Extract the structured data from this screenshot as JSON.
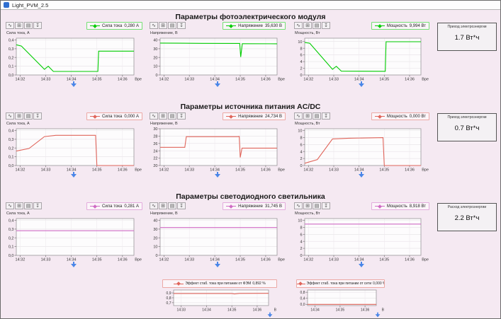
{
  "window": {
    "title": "Light_PVM_2.5"
  },
  "colors": {
    "background": "#f5e9f2",
    "arrow": "#4a86e8",
    "pv_series": "#00cc00",
    "acdc_series": "#e0655b",
    "led_series": "#cf6bc4"
  },
  "toolbar_icons": [
    {
      "name": "graph-cursor-icon",
      "glyph": "∿"
    },
    {
      "name": "graph-zoom-icon",
      "glyph": "⊞"
    },
    {
      "name": "graph-report-icon",
      "glyph": "▤"
    },
    {
      "name": "graph-export-icon",
      "glyph": "↧"
    }
  ],
  "sections": [
    {
      "title": "Параметры фотоэлектрического модуля",
      "info_label": "Приход электроэнергии",
      "info_value": "1.7 Вт*ч"
    },
    {
      "title": "Параметры источника питания AC/DC",
      "info_label": "Приход электроэнергии",
      "info_value": "0.7 Вт*ч"
    },
    {
      "title": "Параметры светодиодного светильника",
      "info_label": "Расход электроэнергии",
      "info_value": "2.2 Вт*ч"
    }
  ],
  "charts": [
    {
      "slot": "r1c1",
      "tpl": "main",
      "color": "#00cc00",
      "ylabel": "Сила тока, А",
      "xlabel": "Вре",
      "legend_label": "Сила тока",
      "legend_value": "0,280 А",
      "ylim": [
        0,
        0.42
      ],
      "yticks": [
        {
          "v": 0,
          "label": "0,0"
        },
        {
          "v": 0.1,
          "label": "0,1"
        },
        {
          "v": 0.2,
          "label": "0,2"
        },
        {
          "v": 0.3,
          "label": "0,3"
        },
        {
          "v": 0.4,
          "label": "0,4"
        }
      ],
      "xlim": [
        -0.15,
        4.45
      ],
      "xticks": [
        {
          "v": 0,
          "label": "14:32"
        },
        {
          "v": 1,
          "label": "14:33"
        },
        {
          "v": 2,
          "label": "14:34"
        },
        {
          "v": 3,
          "label": "14:35"
        },
        {
          "v": 4,
          "label": "14:36"
        }
      ],
      "points": [
        [
          -0.15,
          0.345
        ],
        [
          0.05,
          0.33
        ],
        [
          0.95,
          0.065
        ],
        [
          1.1,
          0.1
        ],
        [
          1.3,
          0.04
        ],
        [
          3.04,
          0.04
        ],
        [
          3.07,
          0.272
        ],
        [
          4.45,
          0.272
        ]
      ]
    },
    {
      "slot": "r1c2",
      "tpl": "main",
      "color": "#00cc00",
      "ylabel": "Напряжение, В",
      "xlabel": "Вре",
      "legend_label": "Напряжение",
      "legend_value": "35,630 В",
      "ylim": [
        0,
        42
      ],
      "yticks": [
        {
          "v": 0,
          "label": "0"
        },
        {
          "v": 10,
          "label": "10"
        },
        {
          "v": 20,
          "label": "20"
        },
        {
          "v": 30,
          "label": "30"
        },
        {
          "v": 40,
          "label": "40"
        }
      ],
      "xlim": [
        -0.15,
        4.45
      ],
      "xticks": [
        {
          "v": 0,
          "label": "14:32"
        },
        {
          "v": 1,
          "label": "14:33"
        },
        {
          "v": 2,
          "label": "14:34"
        },
        {
          "v": 3,
          "label": "14:35"
        },
        {
          "v": 4,
          "label": "14:36"
        }
      ],
      "points": [
        [
          -0.15,
          36.4
        ],
        [
          1.5,
          36.1
        ],
        [
          2.98,
          36.0
        ],
        [
          3.02,
          20.5
        ],
        [
          3.08,
          35.7
        ],
        [
          4.45,
          35.6
        ]
      ]
    },
    {
      "slot": "r1c3",
      "tpl": "main",
      "color": "#00cc00",
      "ylabel": "Мощность, Вт",
      "xlabel": "Вре",
      "legend_label": "Мощность",
      "legend_value": "9,994 Вт",
      "ylim": [
        0,
        11
      ],
      "yticks": [
        {
          "v": 0,
          "label": "0"
        },
        {
          "v": 2,
          "label": "2"
        },
        {
          "v": 4,
          "label": "4"
        },
        {
          "v": 6,
          "label": "6"
        },
        {
          "v": 8,
          "label": "8"
        },
        {
          "v": 10,
          "label": "10"
        }
      ],
      "xlim": [
        -0.15,
        4.45
      ],
      "xticks": [
        {
          "v": 0,
          "label": "14:32"
        },
        {
          "v": 1,
          "label": "14:33"
        },
        {
          "v": 2,
          "label": "14:34"
        },
        {
          "v": 3,
          "label": "14:35"
        },
        {
          "v": 4,
          "label": "14:36"
        }
      ],
      "points": [
        [
          -0.15,
          9.7
        ],
        [
          0.05,
          9.5
        ],
        [
          0.95,
          1.7
        ],
        [
          1.1,
          2.6
        ],
        [
          1.3,
          1.15
        ],
        [
          3.04,
          1.1
        ],
        [
          3.07,
          9.95
        ],
        [
          4.45,
          9.95
        ]
      ]
    },
    {
      "slot": "r2c1",
      "tpl": "main",
      "color": "#e0655b",
      "ylabel": "Сила тока, А",
      "xlabel": "Вре",
      "legend_label": "Сила тока",
      "legend_value": "0,000 А",
      "ylim": [
        0,
        0.42
      ],
      "yticks": [
        {
          "v": 0,
          "label": "0,0"
        },
        {
          "v": 0.1,
          "label": "0,1"
        },
        {
          "v": 0.2,
          "label": "0,2"
        },
        {
          "v": 0.3,
          "label": "0,3"
        },
        {
          "v": 0.4,
          "label": "0,4"
        }
      ],
      "xlim": [
        -0.15,
        4.45
      ],
      "xticks": [
        {
          "v": 0,
          "label": "14:32"
        },
        {
          "v": 1,
          "label": "14:33"
        },
        {
          "v": 2,
          "label": "14:34"
        },
        {
          "v": 3,
          "label": "14:35"
        },
        {
          "v": 4,
          "label": "14:36"
        }
      ],
      "points": [
        [
          -0.15,
          0.165
        ],
        [
          0.35,
          0.195
        ],
        [
          0.95,
          0.33
        ],
        [
          1.4,
          0.345
        ],
        [
          2.95,
          0.345
        ],
        [
          3.0,
          0.0
        ],
        [
          4.45,
          0.0
        ]
      ]
    },
    {
      "slot": "r2c2",
      "tpl": "main",
      "color": "#e0655b",
      "ylabel": "Напряжение, В",
      "xlabel": "Вре",
      "legend_label": "Напряжение",
      "legend_value": "24,734 В",
      "ylim": [
        20,
        30
      ],
      "yticks": [
        {
          "v": 20,
          "label": "20"
        },
        {
          "v": 22,
          "label": "22"
        },
        {
          "v": 24,
          "label": "24"
        },
        {
          "v": 26,
          "label": "26"
        },
        {
          "v": 28,
          "label": "28"
        },
        {
          "v": 30,
          "label": "30"
        }
      ],
      "xlim": [
        -0.15,
        4.45
      ],
      "xticks": [
        {
          "v": 0,
          "label": "14:32"
        },
        {
          "v": 1,
          "label": "14:33"
        },
        {
          "v": 2,
          "label": "14:34"
        },
        {
          "v": 3,
          "label": "14:35"
        },
        {
          "v": 4,
          "label": "14:36"
        }
      ],
      "points": [
        [
          -0.15,
          24.95
        ],
        [
          0.82,
          24.95
        ],
        [
          0.88,
          27.85
        ],
        [
          2.9,
          27.85
        ],
        [
          2.96,
          27.9
        ],
        [
          3.0,
          22.2
        ],
        [
          3.07,
          24.73
        ],
        [
          4.45,
          24.73
        ]
      ]
    },
    {
      "slot": "r2c3",
      "tpl": "main",
      "color": "#e0655b",
      "ylabel": "Мощность, Вт",
      "xlabel": "Вре",
      "legend_label": "Мощность",
      "legend_value": "0,000 Вт",
      "ylim": [
        0,
        10.5
      ],
      "yticks": [
        {
          "v": 0,
          "label": "0"
        },
        {
          "v": 2,
          "label": "2"
        },
        {
          "v": 4,
          "label": "4"
        },
        {
          "v": 6,
          "label": "6"
        },
        {
          "v": 8,
          "label": "8"
        },
        {
          "v": 10,
          "label": "10"
        }
      ],
      "xlim": [
        -0.15,
        4.45
      ],
      "xticks": [
        {
          "v": 0,
          "label": "14:32"
        },
        {
          "v": 1,
          "label": "14:33"
        },
        {
          "v": 2,
          "label": "14:34"
        },
        {
          "v": 3,
          "label": "14:35"
        },
        {
          "v": 4,
          "label": "14:36"
        }
      ],
      "points": [
        [
          -0.15,
          0.65
        ],
        [
          0.35,
          1.7
        ],
        [
          0.95,
          7.6
        ],
        [
          1.6,
          7.8
        ],
        [
          2.95,
          7.95
        ],
        [
          3.0,
          0.0
        ],
        [
          4.45,
          0.0
        ]
      ]
    },
    {
      "slot": "r3c1",
      "tpl": "main",
      "color": "#cf6bc4",
      "ylabel": "Сила тока, А",
      "xlabel": "Вре",
      "legend_label": "Сила тока",
      "legend_value": "0,281 А",
      "ylim": [
        0,
        0.42
      ],
      "yticks": [
        {
          "v": 0,
          "label": "0,0"
        },
        {
          "v": 0.1,
          "label": "0,1"
        },
        {
          "v": 0.2,
          "label": "0,2"
        },
        {
          "v": 0.3,
          "label": "0,3"
        },
        {
          "v": 0.4,
          "label": "0,4"
        }
      ],
      "xlim": [
        -0.15,
        4.45
      ],
      "xticks": [
        {
          "v": 0,
          "label": "14:32"
        },
        {
          "v": 1,
          "label": "14:33"
        },
        {
          "v": 2,
          "label": "14:34"
        },
        {
          "v": 3,
          "label": "14:35"
        },
        {
          "v": 4,
          "label": "14:36"
        }
      ],
      "points": [
        [
          -0.15,
          0.281
        ],
        [
          4.45,
          0.281
        ]
      ]
    },
    {
      "slot": "r3c2",
      "tpl": "main",
      "color": "#cf6bc4",
      "ylabel": "Напряжение, В",
      "xlabel": "Вре",
      "legend_label": "Напряжение",
      "legend_value": "31,745 В",
      "ylim": [
        0,
        42
      ],
      "yticks": [
        {
          "v": 0,
          "label": "0"
        },
        {
          "v": 10,
          "label": "10"
        },
        {
          "v": 20,
          "label": "20"
        },
        {
          "v": 30,
          "label": "30"
        },
        {
          "v": 40,
          "label": "40"
        }
      ],
      "xlim": [
        -0.15,
        4.45
      ],
      "xticks": [
        {
          "v": 0,
          "label": "14:32"
        },
        {
          "v": 1,
          "label": "14:33"
        },
        {
          "v": 2,
          "label": "14:34"
        },
        {
          "v": 3,
          "label": "14:35"
        },
        {
          "v": 4,
          "label": "14:36"
        }
      ],
      "points": [
        [
          -0.15,
          31.75
        ],
        [
          4.45,
          31.75
        ]
      ]
    },
    {
      "slot": "r3c3",
      "tpl": "main",
      "color": "#cf6bc4",
      "ylabel": "Мощность, Вт",
      "xlabel": "Вре",
      "legend_label": "Мощность",
      "legend_value": "8,918 Вт",
      "ylim": [
        0,
        10.5
      ],
      "yticks": [
        {
          "v": 0,
          "label": "0"
        },
        {
          "v": 2,
          "label": "2"
        },
        {
          "v": 4,
          "label": "4"
        },
        {
          "v": 6,
          "label": "6"
        },
        {
          "v": 8,
          "label": "8"
        },
        {
          "v": 10,
          "label": "10"
        }
      ],
      "xlim": [
        -0.15,
        4.45
      ],
      "xticks": [
        {
          "v": 0,
          "label": "14:32"
        },
        {
          "v": 1,
          "label": "14:33"
        },
        {
          "v": 2,
          "label": "14:34"
        },
        {
          "v": 3,
          "label": "14:35"
        },
        {
          "v": 4,
          "label": "14:36"
        }
      ],
      "points": [
        [
          -0.15,
          8.92
        ],
        [
          4.45,
          8.92
        ]
      ]
    },
    {
      "slot": "b1",
      "tpl": "bottom",
      "color": "#e0655b",
      "xlabel": "В",
      "legend_label": "Эффект стаб. тока при питании от ФЭМ",
      "legend_value": "0,892 %",
      "ylim": [
        0.64,
        0.96
      ],
      "yticks": [
        {
          "v": 0.7,
          "label": "0,7"
        },
        {
          "v": 0.8,
          "label": "0,8"
        },
        {
          "v": 0.9,
          "label": "0,9"
        }
      ],
      "xlim": [
        0.7,
        4.45
      ],
      "xticks": [
        {
          "v": 1,
          "label": "14:33"
        },
        {
          "v": 2,
          "label": "14:34"
        },
        {
          "v": 3,
          "label": "14:35"
        },
        {
          "v": 4,
          "label": "14:36"
        }
      ],
      "points": [
        [
          0.7,
          0.888
        ],
        [
          3.0,
          0.889
        ],
        [
          3.1,
          0.878
        ],
        [
          3.3,
          0.89
        ],
        [
          4.45,
          0.892
        ]
      ]
    },
    {
      "slot": "b2",
      "tpl": "bottom",
      "color": "#e0655b",
      "xlabel": "В",
      "legend_label": "Эффект стаб. тока при питании от сети",
      "legend_value": "0,000 %",
      "ylim": [
        -0.08,
        0.95
      ],
      "yticks": [
        {
          "v": 0,
          "label": "0,0"
        },
        {
          "v": 0.4,
          "label": "0,4"
        },
        {
          "v": 0.8,
          "label": "0,8"
        }
      ],
      "xlim": [
        1.7,
        4.45
      ],
      "xticks": [
        {
          "v": 2,
          "label": "14:34"
        },
        {
          "v": 3,
          "label": "14:35"
        },
        {
          "v": 4,
          "label": "14:36"
        }
      ],
      "points": [
        [
          1.7,
          0.0
        ],
        [
          4.45,
          0.0
        ]
      ]
    }
  ]
}
